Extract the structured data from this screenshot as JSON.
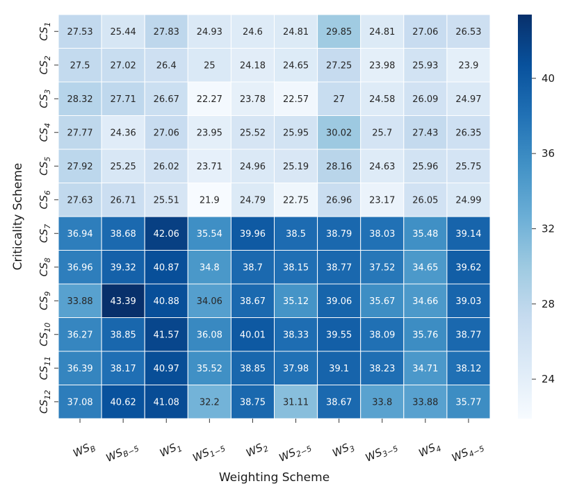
{
  "chart_data": {
    "type": "heatmap",
    "xlabel": "Weighting Scheme",
    "ylabel": "Criticality Scheme",
    "x_categories": [
      {
        "base": "WS",
        "sub": "B"
      },
      {
        "base": "WS",
        "sub": "B−5"
      },
      {
        "base": "WS",
        "sub": "1"
      },
      {
        "base": "WS",
        "sub": "1−5"
      },
      {
        "base": "WS",
        "sub": "2"
      },
      {
        "base": "WS",
        "sub": "2−5"
      },
      {
        "base": "WS",
        "sub": "3"
      },
      {
        "base": "WS",
        "sub": "3−5"
      },
      {
        "base": "WS",
        "sub": "4"
      },
      {
        "base": "WS",
        "sub": "4−5"
      }
    ],
    "y_categories": [
      {
        "base": "CS",
        "sub": "1"
      },
      {
        "base": "CS",
        "sub": "2"
      },
      {
        "base": "CS",
        "sub": "3"
      },
      {
        "base": "CS",
        "sub": "4"
      },
      {
        "base": "CS",
        "sub": "5"
      },
      {
        "base": "CS",
        "sub": "6"
      },
      {
        "base": "CS",
        "sub": "7"
      },
      {
        "base": "CS",
        "sub": "8"
      },
      {
        "base": "CS",
        "sub": "9"
      },
      {
        "base": "CS",
        "sub": "10"
      },
      {
        "base": "CS",
        "sub": "11"
      },
      {
        "base": "CS",
        "sub": "12"
      }
    ],
    "values": [
      [
        27.53,
        25.44,
        27.83,
        24.93,
        24.6,
        24.81,
        29.85,
        24.81,
        27.06,
        26.53
      ],
      [
        27.5,
        27.02,
        26.4,
        25,
        24.18,
        24.65,
        27.25,
        23.98,
        25.93,
        23.9
      ],
      [
        28.32,
        27.71,
        26.67,
        22.27,
        23.78,
        22.57,
        27,
        24.58,
        26.09,
        24.97
      ],
      [
        27.77,
        24.36,
        27.06,
        23.95,
        25.52,
        25.95,
        30.02,
        25.7,
        27.43,
        26.35
      ],
      [
        27.92,
        25.25,
        26.02,
        23.71,
        24.96,
        25.19,
        28.16,
        24.63,
        25.96,
        25.75
      ],
      [
        27.63,
        26.71,
        25.51,
        21.9,
        24.79,
        22.75,
        26.96,
        23.17,
        26.05,
        24.99
      ],
      [
        36.94,
        38.68,
        42.06,
        35.54,
        39.96,
        38.5,
        38.79,
        38.03,
        35.48,
        39.14
      ],
      [
        36.96,
        39.32,
        40.87,
        34.8,
        38.7,
        38.15,
        38.77,
        37.52,
        34.65,
        39.62
      ],
      [
        33.88,
        43.39,
        40.88,
        34.06,
        38.67,
        35.12,
        39.06,
        35.67,
        34.66,
        39.03
      ],
      [
        36.27,
        38.85,
        41.57,
        36.08,
        40.01,
        38.33,
        39.55,
        38.09,
        35.76,
        38.77
      ],
      [
        36.39,
        38.17,
        40.97,
        35.52,
        38.85,
        37.98,
        39.1,
        38.23,
        34.71,
        38.12
      ],
      [
        37.08,
        40.62,
        41.08,
        32.2,
        38.75,
        31.11,
        38.67,
        33.8,
        33.88,
        35.77
      ]
    ],
    "colormap": "Blues",
    "color_range": [
      21.9,
      43.39
    ],
    "colorbar_ticks": [
      24,
      28,
      32,
      36,
      40
    ],
    "grid": true,
    "cell_border_color": "#ffffff",
    "colorbar_position": "right"
  }
}
